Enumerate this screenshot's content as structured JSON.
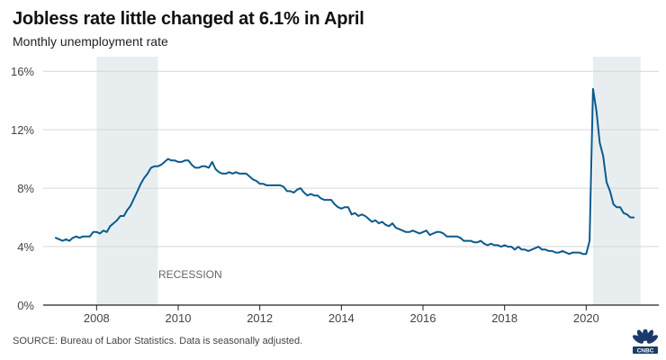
{
  "chart_data": {
    "type": "line",
    "title": "Jobless rate little changed at 6.1% in April",
    "subtitle": "Monthly unemployment rate",
    "source": "SOURCE: Bureau of Labor Statistics. Data is seasonally adjusted.",
    "x_start_year": 2007,
    "xlim": [
      2007,
      2021.33
    ],
    "ylim": [
      0,
      17
    ],
    "y_ticks": [
      0,
      4,
      8,
      12,
      16
    ],
    "y_tick_labels": [
      "0%",
      "4%",
      "8%",
      "12%",
      "16%"
    ],
    "x_ticks": [
      2008,
      2010,
      2012,
      2014,
      2016,
      2018,
      2020
    ],
    "x_tick_labels": [
      "2008",
      "2010",
      "2012",
      "2014",
      "2016",
      "2018",
      "2020"
    ],
    "recessions": [
      {
        "start": 2008.0,
        "end": 2009.5
      },
      {
        "start": 2020.17,
        "end": 2021.33
      }
    ],
    "annotation": "RECESSION",
    "grid": true,
    "line_color": "#0b5a8e",
    "recession_color": "#e8eef0",
    "series": [
      {
        "values": [
          4.6,
          4.5,
          4.4,
          4.5,
          4.4,
          4.6,
          4.7,
          4.6,
          4.7,
          4.7,
          4.7,
          5.0,
          5.0,
          4.9,
          5.1,
          5.0,
          5.4,
          5.6,
          5.8,
          6.1,
          6.1,
          6.5,
          6.8,
          7.3,
          7.8,
          8.3,
          8.7,
          9.0,
          9.4,
          9.5,
          9.5,
          9.6,
          9.8,
          10.0,
          9.9,
          9.9,
          9.8,
          9.8,
          9.9,
          9.9,
          9.6,
          9.4,
          9.4,
          9.5,
          9.5,
          9.4,
          9.8,
          9.3,
          9.1,
          9.0,
          9.0,
          9.1,
          9.0,
          9.1,
          9.0,
          9.0,
          9.0,
          8.8,
          8.6,
          8.5,
          8.3,
          8.3,
          8.2,
          8.2,
          8.2,
          8.2,
          8.2,
          8.1,
          7.8,
          7.8,
          7.7,
          7.9,
          8.0,
          7.7,
          7.5,
          7.6,
          7.5,
          7.5,
          7.3,
          7.2,
          7.2,
          7.2,
          6.9,
          6.7,
          6.6,
          6.7,
          6.7,
          6.2,
          6.3,
          6.1,
          6.2,
          6.1,
          5.9,
          5.7,
          5.8,
          5.6,
          5.7,
          5.5,
          5.4,
          5.6,
          5.3,
          5.2,
          5.1,
          5.0,
          5.0,
          5.1,
          5.0,
          4.9,
          5.0,
          5.1,
          4.8,
          4.9,
          5.0,
          5.0,
          4.9,
          4.7,
          4.7,
          4.7,
          4.7,
          4.6,
          4.4,
          4.4,
          4.4,
          4.3,
          4.3,
          4.4,
          4.2,
          4.1,
          4.2,
          4.1,
          4.1,
          4.0,
          4.1,
          4.0,
          4.0,
          3.8,
          4.0,
          3.8,
          3.8,
          3.7,
          3.8,
          3.9,
          4.0,
          3.8,
          3.8,
          3.7,
          3.7,
          3.6,
          3.6,
          3.7,
          3.6,
          3.5,
          3.6,
          3.6,
          3.6,
          3.5,
          3.5,
          4.4,
          14.8,
          13.3,
          11.1,
          10.2,
          8.4,
          7.8,
          6.9,
          6.7,
          6.7,
          6.3,
          6.2,
          6.0,
          6.0
        ]
      }
    ]
  }
}
